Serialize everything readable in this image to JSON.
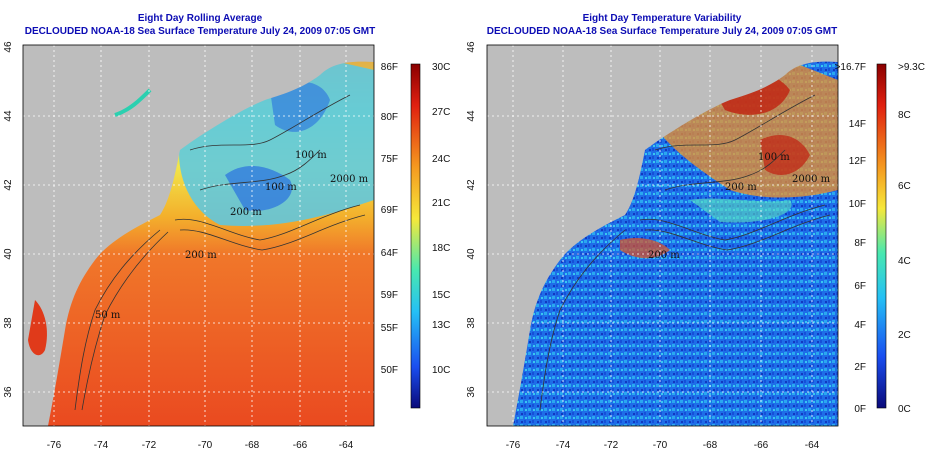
{
  "left_panel": {
    "title": "Eight Day Rolling Average",
    "subtitle": "DECLOUDED NOAA-18 Sea Surface Temperature July 24, 2009 07:05 GMT",
    "x_ticks": [
      "-76",
      "-74",
      "-72",
      "-70",
      "-68",
      "-66",
      "-64"
    ],
    "y_ticks": [
      "46",
      "44",
      "42",
      "40",
      "38",
      "36"
    ],
    "colorbar_f": [
      "86F",
      "80F",
      "75F",
      "69F",
      "64F",
      "59F",
      "55F",
      "50F"
    ],
    "colorbar_c": [
      "30C",
      "27C",
      "24C",
      "21C",
      "18C",
      "15C",
      "13C",
      "10C"
    ],
    "contours": [
      "100 m",
      "100 m",
      "200 m",
      "200 m",
      "50 m",
      "2000 m"
    ]
  },
  "right_panel": {
    "title": "Eight Day Temperature Variability",
    "subtitle": "DECLOUDED NOAA-18 Sea Surface Temperature July 24, 2009 07:05 GMT",
    "x_ticks": [
      "-76",
      "-74",
      "-72",
      "-70",
      "-68",
      "-66",
      "-64"
    ],
    "y_ticks": [
      "46",
      "44",
      "42",
      "40",
      "38",
      "36"
    ],
    "colorbar_f": [
      ">16.7F",
      "14F",
      "12F",
      "10F",
      "8F",
      "6F",
      "4F",
      "2F",
      "0F"
    ],
    "colorbar_c": [
      ">9.3C",
      "8C",
      "6C",
      "4C",
      "2C",
      "0C"
    ],
    "contours": [
      "100 m",
      "200 m",
      "200 m",
      "2000 m"
    ]
  },
  "colors": {
    "title": "#0c0cb4",
    "land": "#bdbdbd",
    "grid": "#ffffff"
  }
}
